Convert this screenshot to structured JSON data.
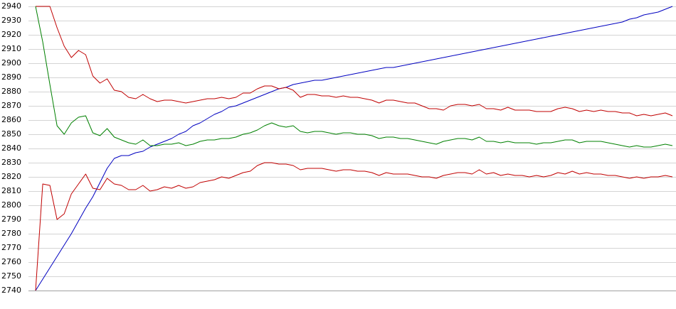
{
  "chart_data": {
    "type": "line",
    "categories": [
      null,
      null,
      null,
      null,
      null,
      null,
      null,
      null,
      null,
      null,
      null,
      null,
      null,
      null,
      null,
      null,
      null,
      null,
      null,
      null,
      null,
      null,
      null,
      null,
      null,
      null,
      null,
      null,
      null,
      null,
      null,
      null,
      null,
      null,
      null,
      null,
      null,
      null,
      null,
      null,
      null,
      null,
      null,
      null,
      null,
      null,
      null,
      null,
      null,
      null,
      null,
      null,
      null,
      null,
      null,
      null,
      null,
      null,
      null,
      null,
      null,
      null,
      null,
      null,
      null,
      null,
      null,
      null,
      null,
      null,
      null,
      null,
      null,
      null,
      null,
      null,
      null,
      null,
      null,
      null,
      null,
      null,
      null,
      null,
      null,
      null,
      null,
      null,
      null,
      null
    ],
    "series": [
      {
        "color": "#0000c0",
        "values": [
          2740,
          2748,
          2756,
          2764,
          2772,
          2780,
          2789,
          2798,
          2806,
          2816,
          2826,
          2833,
          2835,
          2835,
          2837,
          2838,
          2841,
          2843,
          2845,
          2847,
          2850,
          2852,
          2856,
          2858,
          2861,
          2864,
          2866,
          2869,
          2870,
          2872,
          2874,
          2876,
          2878,
          2880,
          2882,
          2883,
          2885,
          2886,
          2887,
          2888,
          2888,
          2889,
          2890,
          2891,
          2892,
          2893,
          2894,
          2895,
          2896,
          2897,
          2897,
          2898,
          2899,
          2900,
          2901,
          2902,
          2903,
          2904,
          2905,
          2906,
          2907,
          2908,
          2909,
          2910,
          2911,
          2912,
          2913,
          2914,
          2915,
          2916,
          2917,
          2918,
          2919,
          2920,
          2921,
          2922,
          2923,
          2924,
          2925,
          2926,
          2927,
          2928,
          2929,
          2931,
          2932,
          2934,
          2935,
          2936,
          2938,
          2940
        ]
      },
      {
        "color": "#c00000",
        "values": [
          2940,
          2940,
          2940,
          2925,
          2912,
          2904,
          2909,
          2906,
          2891,
          2886,
          2889,
          2881,
          2880,
          2876,
          2875,
          2878,
          2875,
          2873,
          2874,
          2874,
          2873,
          2872,
          2873,
          2874,
          2875,
          2875,
          2876,
          2875,
          2876,
          2879,
          2879,
          2882,
          2884,
          2884,
          2882,
          2883,
          2881,
          2876,
          2878,
          2878,
          2877,
          2877,
          2876,
          2877,
          2876,
          2876,
          2875,
          2874,
          2872,
          2874,
          2874,
          2873,
          2872,
          2872,
          2870,
          2868,
          2868,
          2867,
          2870,
          2871,
          2871,
          2870,
          2871,
          2868,
          2868,
          2867,
          2869,
          2867,
          2867,
          2867,
          2866,
          2866,
          2866,
          2868,
          2869,
          2868,
          2866,
          2867,
          2866,
          2867,
          2866,
          2866,
          2865,
          2865,
          2863,
          2864,
          2863,
          2864,
          2865,
          2863
        ]
      },
      {
        "color": "#008000",
        "values": [
          2940,
          2915,
          2885,
          2856,
          2850,
          2858,
          2862,
          2863,
          2851,
          2849,
          2854,
          2848,
          2846,
          2844,
          2843,
          2846,
          2842,
          2842,
          2843,
          2843,
          2844,
          2842,
          2843,
          2845,
          2846,
          2846,
          2847,
          2847,
          2848,
          2850,
          2851,
          2853,
          2856,
          2858,
          2856,
          2855,
          2856,
          2852,
          2851,
          2852,
          2852,
          2851,
          2850,
          2851,
          2851,
          2850,
          2850,
          2849,
          2847,
          2848,
          2848,
          2847,
          2847,
          2846,
          2845,
          2844,
          2843,
          2845,
          2846,
          2847,
          2847,
          2846,
          2848,
          2845,
          2845,
          2844,
          2845,
          2844,
          2844,
          2844,
          2843,
          2844,
          2844,
          2845,
          2846,
          2846,
          2844,
          2845,
          2845,
          2845,
          2844,
          2843,
          2842,
          2841,
          2842,
          2841,
          2841,
          2842,
          2843,
          2842
        ]
      },
      {
        "color": "#c00000",
        "values": [
          2740,
          2815,
          2814,
          2790,
          2794,
          2808,
          2815,
          2822,
          2812,
          2811,
          2819,
          2815,
          2814,
          2811,
          2811,
          2814,
          2810,
          2811,
          2813,
          2812,
          2814,
          2812,
          2813,
          2816,
          2817,
          2818,
          2820,
          2819,
          2821,
          2823,
          2824,
          2828,
          2830,
          2830,
          2829,
          2829,
          2828,
          2825,
          2826,
          2826,
          2826,
          2825,
          2824,
          2825,
          2825,
          2824,
          2824,
          2823,
          2821,
          2823,
          2822,
          2822,
          2822,
          2821,
          2820,
          2820,
          2819,
          2821,
          2822,
          2823,
          2823,
          2822,
          2825,
          2822,
          2823,
          2821,
          2822,
          2821,
          2821,
          2820,
          2821,
          2820,
          2821,
          2823,
          2822,
          2824,
          2822,
          2823,
          2822,
          2822,
          2821,
          2821,
          2820,
          2819,
          2820,
          2819,
          2820,
          2820,
          2821,
          2820
        ]
      }
    ],
    "ylim": [
      2740,
      2940
    ],
    "yticks": [
      2740,
      2750,
      2760,
      2770,
      2780,
      2790,
      2800,
      2810,
      2820,
      2830,
      2840,
      2850,
      2860,
      2870,
      2880,
      2890,
      2900,
      2910,
      2920,
      2930,
      2940
    ],
    "grid": true
  }
}
